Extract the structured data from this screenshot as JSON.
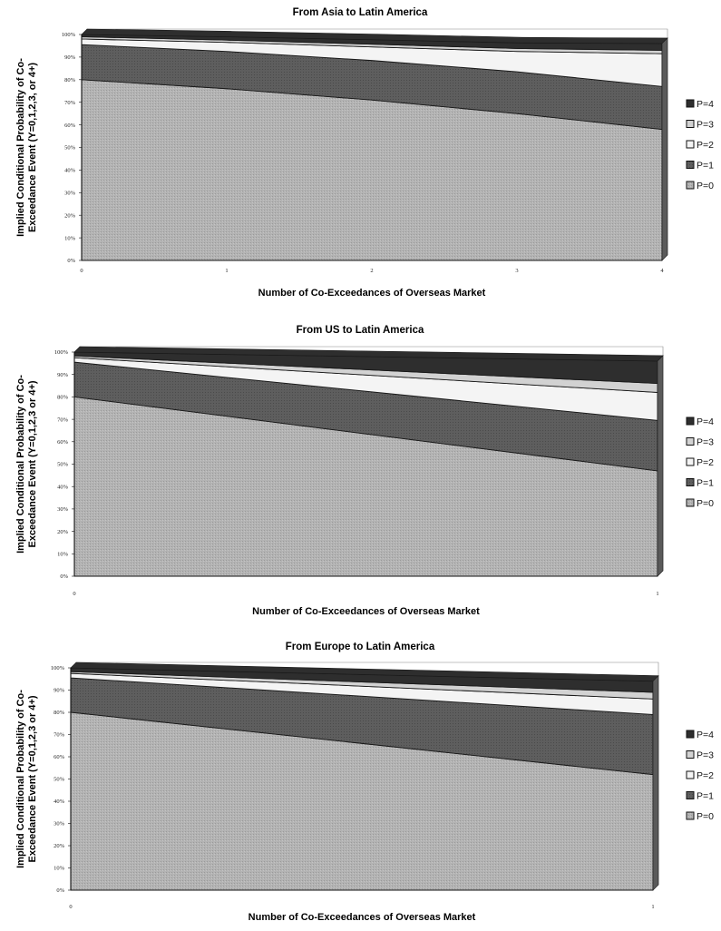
{
  "chart_data": [
    {
      "type": "area",
      "stacked": true,
      "title": "From Asia to Latin America",
      "xlabel": "Number of Co-Exceedances of Overseas Market",
      "ylabel": "Implied Conditional Probability of Co-Exceedance Event (Y=0,1,2,3, or 4+)",
      "ylabel_lines": [
        "Implied Conditional Probability of Co-",
        "Exceedance Event (Y=0,1,2,3, or 4+)"
      ],
      "x": [
        0,
        1,
        2,
        3,
        4
      ],
      "x_tick_labels": [
        "0",
        "1",
        "2",
        "3",
        "4"
      ],
      "y_tick_labels": [
        "0%",
        "10%",
        "20%",
        "30%",
        "40%",
        "50%",
        "60%",
        "70%",
        "80%",
        "90%",
        "100%"
      ],
      "ylim": [
        0,
        100
      ],
      "legend_position": "right",
      "series": [
        {
          "name": "P=0",
          "values": [
            80,
            76,
            71,
            65,
            58
          ]
        },
        {
          "name": "P=1",
          "values": [
            15.5,
            16.5,
            17.5,
            18.5,
            19
          ]
        },
        {
          "name": "P=2",
          "values": [
            2.5,
            4,
            6,
            9,
            14.5
          ]
        },
        {
          "name": "P=3",
          "values": [
            1,
            1,
            1.2,
            1.3,
            1.5
          ]
        },
        {
          "name": "P=4",
          "values": [
            1,
            1.5,
            2,
            2.5,
            3
          ]
        }
      ]
    },
    {
      "type": "area",
      "stacked": true,
      "title": "From US to Latin America",
      "xlabel": "Number of Co-Exceedances of Overseas Market",
      "ylabel": "Implied Conditional Probability of Co-Exceedance Event (Y=0,1,2,3 or 4+)",
      "ylabel_lines": [
        "Implied Conditional Probability of Co-",
        "Exceedance Event (Y=0,1,2,3 or 4+)"
      ],
      "x": [
        0,
        1
      ],
      "x_tick_labels": [
        "0",
        "1"
      ],
      "y_tick_labels": [
        "0%",
        "10%",
        "20%",
        "30%",
        "40%",
        "50%",
        "60%",
        "70%",
        "80%",
        "90%",
        "100%"
      ],
      "ylim": [
        0,
        100
      ],
      "legend_position": "right",
      "series": [
        {
          "name": "P=0",
          "values": [
            80,
            47
          ]
        },
        {
          "name": "P=1",
          "values": [
            15.5,
            22.5
          ]
        },
        {
          "name": "P=2",
          "values": [
            2,
            12.5
          ]
        },
        {
          "name": "P=3",
          "values": [
            0.8,
            4
          ]
        },
        {
          "name": "P=4",
          "values": [
            1.7,
            10
          ]
        }
      ]
    },
    {
      "type": "area",
      "stacked": true,
      "title": "From Europe to Latin America",
      "xlabel": "Number of Co-Exceedances of Overseas Market",
      "ylabel": "Implied Conditional Probability of Co-Exceedance Event (Y=0,1,2,3 or 4+)",
      "ylabel_lines": [
        "Implied Conditional Probability of Co-",
        "Exceedance Event (Y=0,1,2,3 or 4+)"
      ],
      "x": [
        0,
        1
      ],
      "x_tick_labels": [
        "0",
        "1"
      ],
      "y_tick_labels": [
        "0%",
        "10%",
        "20%",
        "30%",
        "40%",
        "50%",
        "60%",
        "70%",
        "80%",
        "90%",
        "100%"
      ],
      "ylim": [
        0,
        100
      ],
      "legend_position": "right",
      "series": [
        {
          "name": "P=0",
          "values": [
            80,
            52
          ]
        },
        {
          "name": "P=1",
          "values": [
            15.5,
            27
          ]
        },
        {
          "name": "P=2",
          "values": [
            2,
            7
          ]
        },
        {
          "name": "P=3",
          "values": [
            0.8,
            3
          ]
        },
        {
          "name": "P=4",
          "values": [
            1.7,
            5
          ]
        }
      ]
    }
  ],
  "colors": {
    "P=0": "#b3b3b3",
    "P=1": "#5e5e5e",
    "P=2": "#f4f4f4",
    "P=3": "#d2d2d2",
    "P=4": "#2e2e2e"
  }
}
